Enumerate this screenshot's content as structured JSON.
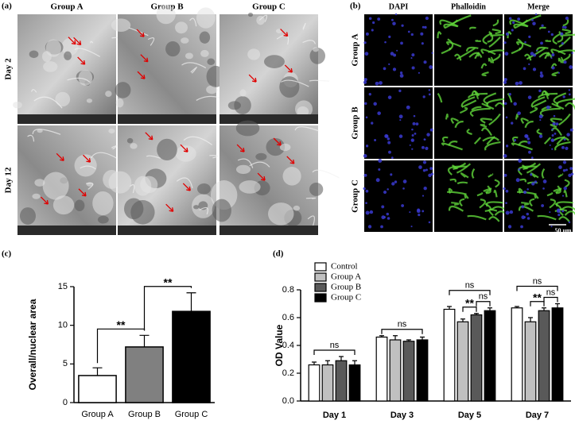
{
  "panels": {
    "a": {
      "label": "(a)",
      "columns": [
        "Group A",
        "Group B",
        "Group C"
      ],
      "rows": [
        "Day 2",
        "Day  12"
      ]
    },
    "b": {
      "label": "(b)",
      "columns": [
        "DAPI",
        "Phalloidin",
        "Merge"
      ],
      "rows": [
        "Group A",
        "Group B",
        "Group C"
      ],
      "scale_bar": "50 um"
    }
  },
  "chart_data": [
    {
      "type": "bar",
      "panel_label": "(c)",
      "ylabel": "Overall/nuclear area",
      "categories": [
        "Group A",
        "Group B",
        "Group C"
      ],
      "values": [
        3.5,
        7.2,
        11.8
      ],
      "errors": [
        1.0,
        1.5,
        2.4
      ],
      "colors": [
        "#ffffff",
        "#808080",
        "#000000"
      ],
      "ylim": [
        0,
        15
      ],
      "yticks": [
        0,
        5,
        10,
        15
      ],
      "significance": [
        {
          "between": [
            0,
            1
          ],
          "label": "**"
        },
        {
          "between": [
            1,
            2
          ],
          "label": "**"
        }
      ]
    },
    {
      "type": "grouped_bar",
      "panel_label": "(d)",
      "ylabel": "OD Value",
      "categories": [
        "Day 1",
        "Day 3",
        "Day 5",
        "Day 7"
      ],
      "series": [
        {
          "name": "Control",
          "color": "#ffffff",
          "values": [
            0.26,
            0.46,
            0.66,
            0.67
          ],
          "errors": [
            0.02,
            0.01,
            0.02,
            0.01
          ]
        },
        {
          "name": "Group A",
          "color": "#c0c0c0",
          "values": [
            0.26,
            0.44,
            0.57,
            0.57
          ],
          "errors": [
            0.03,
            0.03,
            0.02,
            0.03
          ]
        },
        {
          "name": "Group B",
          "color": "#595959",
          "values": [
            0.29,
            0.43,
            0.62,
            0.65
          ],
          "errors": [
            0.03,
            0.01,
            0.01,
            0.02
          ]
        },
        {
          "name": "Group C",
          "color": "#000000",
          "values": [
            0.26,
            0.44,
            0.65,
            0.67
          ],
          "errors": [
            0.03,
            0.02,
            0.02,
            0.03
          ]
        }
      ],
      "ylim": [
        0,
        0.8
      ],
      "yticks": [
        {
          "value": 0,
          "label": "0.0"
        },
        0.2,
        0.4,
        0.6,
        0.8
      ],
      "legend": "upper left",
      "significance": [
        {
          "category": 0,
          "between": [
            0,
            3
          ],
          "label": "ns"
        },
        {
          "category": 1,
          "between": [
            0,
            3
          ],
          "label": "ns"
        },
        {
          "category": 2,
          "between": [
            1,
            2
          ],
          "label": "**"
        },
        {
          "category": 2,
          "between": [
            2,
            3
          ],
          "label": "ns"
        },
        {
          "category": 2,
          "between": [
            0,
            3
          ],
          "label": "ns"
        },
        {
          "category": 3,
          "between": [
            1,
            2
          ],
          "label": "**"
        },
        {
          "category": 3,
          "between": [
            2,
            3
          ],
          "label": "ns"
        },
        {
          "category": 3,
          "between": [
            0,
            3
          ],
          "label": "ns"
        }
      ]
    }
  ]
}
